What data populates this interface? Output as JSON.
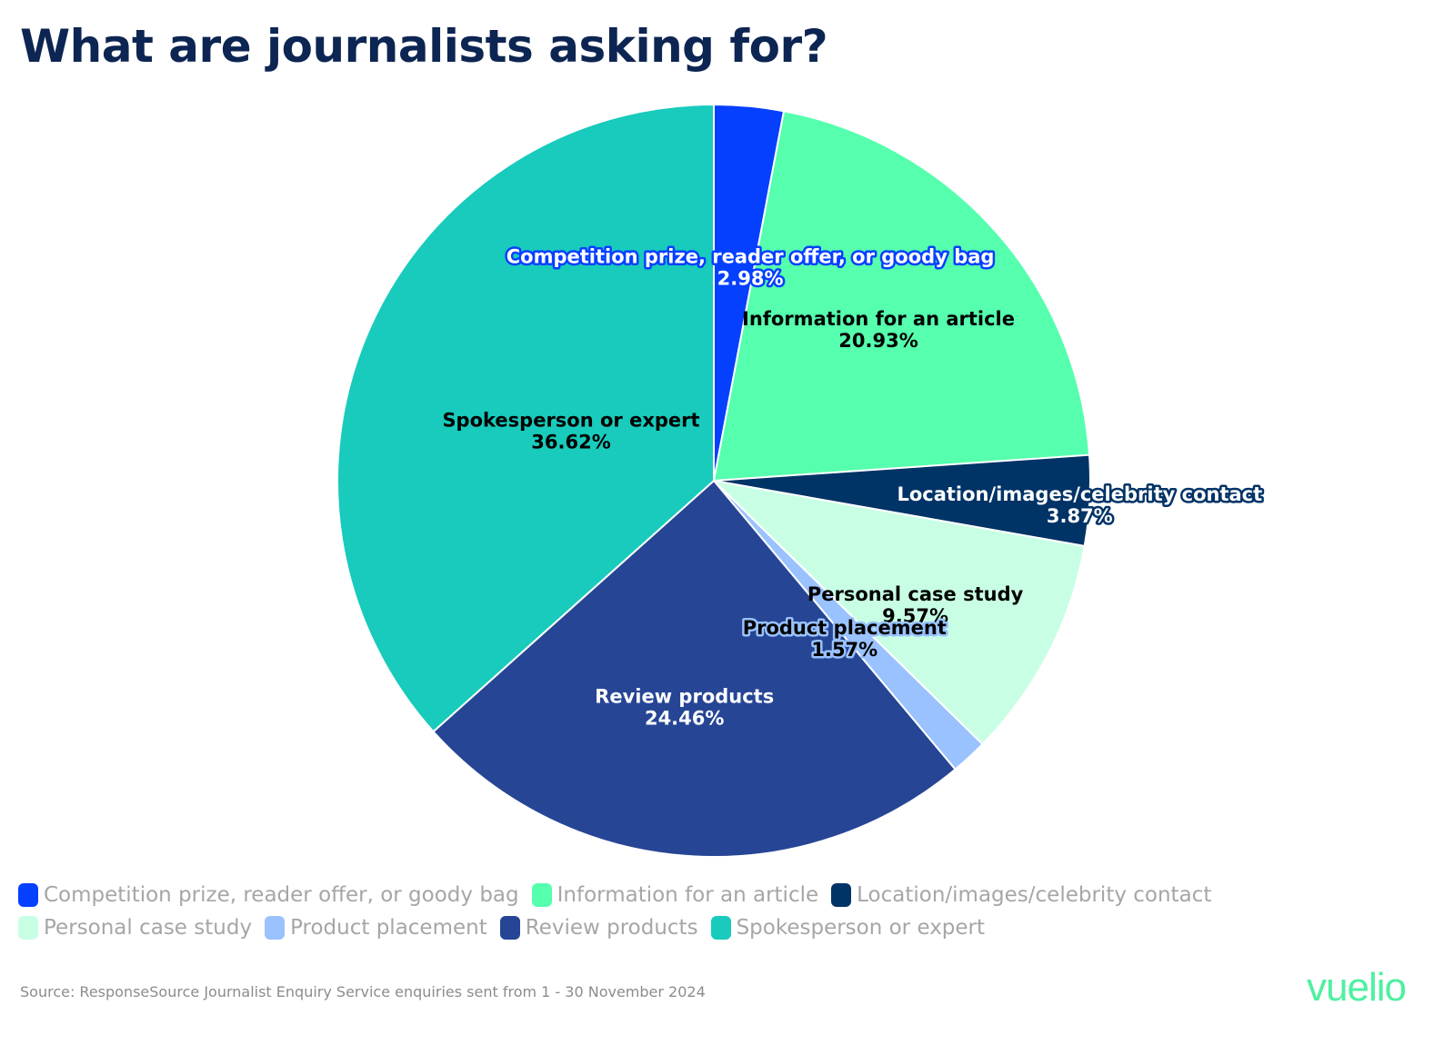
{
  "title": "What are journalists asking for?",
  "source": "Source: ResponseSource Journalist Enquiry Service enquiries sent from 1 - 30 November 2024",
  "brand": "vuelio",
  "chart_data": {
    "type": "pie",
    "title": "What are journalists asking for?",
    "legend_position": "bottom",
    "slices": [
      {
        "label": "Competition prize, reader offer, or goody bag",
        "value": 2.98,
        "display": "2.98%",
        "color": "#0540ff",
        "text_color": "#ffffff",
        "outline": "#0540ff"
      },
      {
        "label": "Information for an article",
        "value": 20.93,
        "display": "20.93%",
        "color": "#55ffad",
        "text_color": "#000000",
        "outline": ""
      },
      {
        "label": "Location/images/celebrity contact",
        "value": 3.87,
        "display": "3.87%",
        "color": "#003366",
        "text_color": "#ffffff",
        "outline": "#003366"
      },
      {
        "label": "Personal case study",
        "value": 9.57,
        "display": "9.57%",
        "color": "#c8ffe4",
        "text_color": "#000000",
        "outline": ""
      },
      {
        "label": "Product placement",
        "value": 1.57,
        "display": "1.57%",
        "color": "#99c2ff",
        "text_color": "#000000",
        "outline": "#99c2ff"
      },
      {
        "label": "Review products",
        "value": 24.46,
        "display": "24.46%",
        "color": "#264595",
        "text_color": "#ffffff",
        "outline": ""
      },
      {
        "label": "Spokesperson or expert",
        "value": 36.62,
        "display": "36.62%",
        "color": "#18cbbc",
        "text_color": "#000000",
        "outline": ""
      }
    ]
  }
}
